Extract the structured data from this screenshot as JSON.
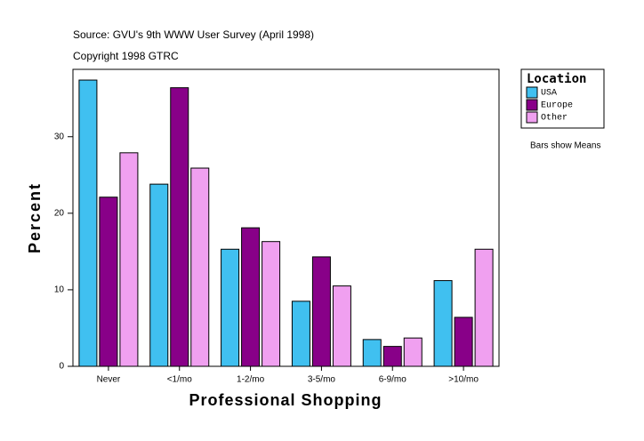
{
  "chart_data": {
    "type": "bar",
    "title": "Source: GVU's 9th WWW User Survey (April 1998)",
    "subtitle": "Copyright 1998 GTRC",
    "x_label": "Professional Shopping",
    "y_label": "Percent",
    "legend_title": "Location",
    "annotation": "Bars show Means",
    "categories": [
      "Never",
      "<1/mo",
      "1-2/mo",
      "3-5/mo",
      "6-9/mo",
      ">10/mo"
    ],
    "series": [
      {
        "name": "USA",
        "color": "#40c0f0",
        "values": [
          37.4,
          23.8,
          15.3,
          8.5,
          3.5,
          11.2
        ]
      },
      {
        "name": "Europe",
        "color": "#880088",
        "values": [
          22.1,
          36.4,
          18.1,
          14.3,
          2.6,
          6.4
        ]
      },
      {
        "name": "Other",
        "color": "#f0a0f0",
        "values": [
          27.9,
          25.9,
          16.3,
          10.5,
          3.7,
          15.3
        ]
      }
    ],
    "ylim": [
      0,
      38.8
    ],
    "yticks": [
      0,
      10,
      20,
      30
    ],
    "legend_position": "right"
  }
}
